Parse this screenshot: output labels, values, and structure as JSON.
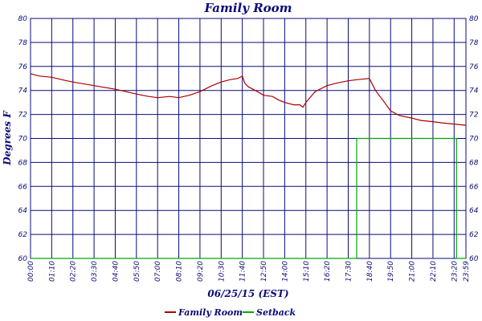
{
  "chart_data": {
    "type": "line",
    "title": "Family Room",
    "xlabel": "06/25/15 (EST)",
    "ylabel": "Degrees F",
    "x_ticks": [
      "00:00",
      "01:10",
      "02:20",
      "03:30",
      "04:40",
      "05:50",
      "07:00",
      "08:10",
      "09:20",
      "10:30",
      "11:40",
      "12:50",
      "14:00",
      "15:10",
      "16:20",
      "17:30",
      "18:40",
      "19:50",
      "21:00",
      "22:10",
      "23:20",
      "23:59"
    ],
    "y_ticks": [
      60,
      62,
      64,
      66,
      68,
      70,
      72,
      74,
      76,
      78,
      80
    ],
    "ylim": [
      60,
      80
    ],
    "xlim_minutes": [
      0,
      1439
    ],
    "grid": true,
    "legend_position": "bottom",
    "series": [
      {
        "name": "Family Room",
        "color": "#aa0000",
        "points": [
          [
            "00:00",
            75.4
          ],
          [
            "00:30",
            75.2
          ],
          [
            "01:10",
            75.1
          ],
          [
            "02:00",
            74.8
          ],
          [
            "02:20",
            74.7
          ],
          [
            "03:30",
            74.4
          ],
          [
            "04:40",
            74.1
          ],
          [
            "05:50",
            73.7
          ],
          [
            "06:30",
            73.5
          ],
          [
            "07:00",
            73.4
          ],
          [
            "07:40",
            73.5
          ],
          [
            "08:10",
            73.4
          ],
          [
            "08:45",
            73.6
          ],
          [
            "09:20",
            73.9
          ],
          [
            "10:00",
            74.4
          ],
          [
            "10:30",
            74.7
          ],
          [
            "11:00",
            74.9
          ],
          [
            "11:25",
            75.0
          ],
          [
            "11:40",
            75.2
          ],
          [
            "11:48",
            74.6
          ],
          [
            "12:00",
            74.3
          ],
          [
            "12:30",
            73.9
          ],
          [
            "12:50",
            73.6
          ],
          [
            "13:20",
            73.5
          ],
          [
            "13:40",
            73.2
          ],
          [
            "14:00",
            73.0
          ],
          [
            "14:30",
            72.8
          ],
          [
            "14:50",
            72.8
          ],
          [
            "15:00",
            72.6
          ],
          [
            "15:10",
            73.0
          ],
          [
            "15:40",
            73.9
          ],
          [
            "16:20",
            74.4
          ],
          [
            "16:50",
            74.6
          ],
          [
            "17:30",
            74.8
          ],
          [
            "18:00",
            74.9
          ],
          [
            "18:40",
            75.0
          ],
          [
            "19:00",
            74.0
          ],
          [
            "19:30",
            73.0
          ],
          [
            "19:50",
            72.3
          ],
          [
            "20:20",
            71.9
          ],
          [
            "21:00",
            71.7
          ],
          [
            "21:30",
            71.5
          ],
          [
            "22:10",
            71.4
          ],
          [
            "22:40",
            71.3
          ],
          [
            "23:20",
            71.2
          ],
          [
            "23:59",
            71.1
          ]
        ]
      },
      {
        "name": "Setback",
        "color": "#00aa00",
        "points": [
          [
            "00:00",
            60
          ],
          [
            "17:58",
            60
          ],
          [
            "17:58",
            70
          ],
          [
            "23:28",
            70
          ],
          [
            "23:28",
            60
          ],
          [
            "23:59",
            60
          ]
        ]
      }
    ]
  }
}
